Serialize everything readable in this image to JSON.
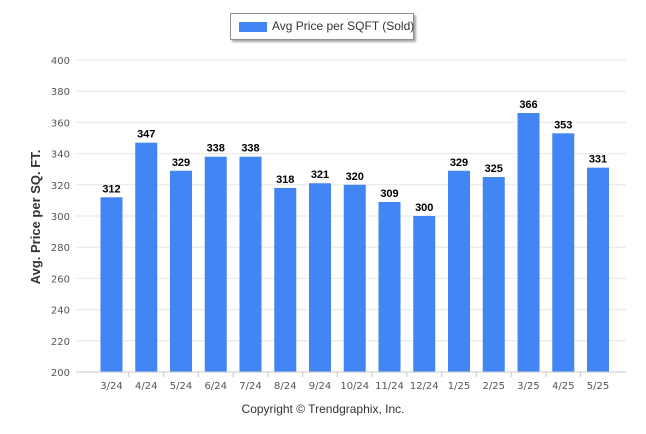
{
  "legend": {
    "label": "Avg Price per SQFT (Sold)"
  },
  "footer": {
    "copyright": "Copyright © Trendgraphix, Inc."
  },
  "colors": {
    "bar": "#4285f4",
    "grid": "#e6e6e6",
    "axis": "#c8c8c8"
  },
  "chart_data": {
    "type": "bar",
    "categories": [
      "3/24",
      "4/24",
      "5/24",
      "6/24",
      "7/24",
      "8/24",
      "9/24",
      "10/24",
      "11/24",
      "12/24",
      "1/25",
      "2/25",
      "3/25",
      "4/25",
      "5/25"
    ],
    "series": [
      {
        "name": "Avg Price per SQFT (Sold)",
        "values": [
          312,
          347,
          329,
          338,
          338,
          318,
          321,
          320,
          309,
          300,
          329,
          325,
          366,
          353,
          331
        ]
      }
    ],
    "ylabel": "Avg. Price per SQ. FT.",
    "xlabel": "",
    "ylim": [
      200,
      400
    ],
    "yticks": [
      200,
      220,
      240,
      260,
      280,
      300,
      320,
      340,
      360,
      380,
      400
    ],
    "grid": true,
    "legend_position": "top-center",
    "data_labels": true
  }
}
